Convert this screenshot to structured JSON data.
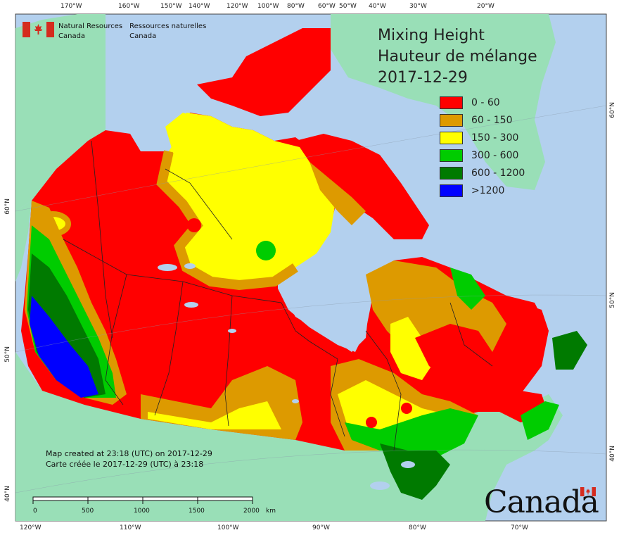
{
  "title": {
    "line1": "Mixing Height",
    "line2": "Hauteur de mélange",
    "date": "2017-12-29"
  },
  "legend": [
    {
      "label": "0 - 60",
      "color": "#ff0000"
    },
    {
      "label": "60 - 150",
      "color": "#dd9a00"
    },
    {
      "label": "150 - 300",
      "color": "#ffff00"
    },
    {
      "label": "300 - 600",
      "color": "#00cc00"
    },
    {
      "label": "600 - 1200",
      "color": "#007a00"
    },
    {
      "label": ">1200",
      "color": "#0000ff"
    }
  ],
  "agency": {
    "en_line1": "Natural Resources",
    "en_line2": "Canada",
    "fr_line1": "Ressources naturelles",
    "fr_line2": "Canada"
  },
  "created": {
    "en": "Map created at 23:18 (UTC) on 2017-12-29",
    "fr": "Carte créée le 2017-12-29 (UTC) à 23:18"
  },
  "scale": {
    "labels": [
      "0",
      "500",
      "1000",
      "1500",
      "2000"
    ],
    "unit": "km"
  },
  "wordmark": "Canada",
  "ticks": {
    "top": [
      "170°W",
      "160°W",
      "150°W",
      "140°W",
      "120°W",
      "100°W",
      "80°W",
      "60°W",
      "50°W",
      "40°W",
      "30°W",
      "20°W"
    ],
    "bottom": [
      "120°W",
      "110°W",
      "100°W",
      "90°W",
      "80°W",
      "70°W"
    ],
    "left": [
      "60°N",
      "50°N",
      "40°N"
    ],
    "right": [
      "60°N",
      "50°N",
      "40°N"
    ]
  },
  "colors": {
    "ocean": "#b3d0ee",
    "land_outside": "#99dfb7"
  }
}
